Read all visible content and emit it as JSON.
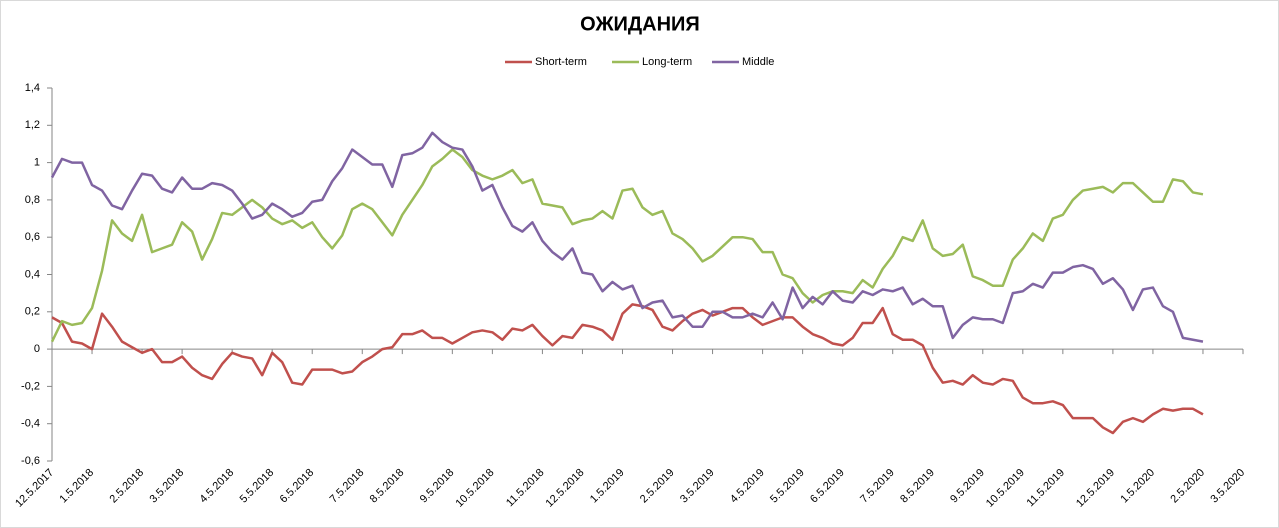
{
  "chart_data": {
    "type": "line",
    "title": "ОЖИДАНИЯ",
    "legend": "top",
    "categories": [
      "12.5.2017",
      null,
      null,
      null,
      "1.5.2018",
      null,
      null,
      null,
      null,
      "2.5.2018",
      null,
      null,
      null,
      "3.5.2018",
      null,
      null,
      null,
      null,
      "4.5.2018",
      null,
      null,
      null,
      "5.5.2018",
      null,
      null,
      null,
      "6.5.2018",
      null,
      null,
      null,
      null,
      "7.5.2018",
      null,
      null,
      null,
      "8.5.2018",
      null,
      null,
      null,
      null,
      "9.5.2018",
      null,
      null,
      null,
      "10.5.2018",
      null,
      null,
      null,
      null,
      "11.5.2018",
      null,
      null,
      null,
      "12.5.2018",
      null,
      null,
      null,
      "1.5.2019",
      null,
      null,
      null,
      null,
      "2.5.2019",
      null,
      null,
      null,
      "3.5.2019",
      null,
      null,
      null,
      null,
      "4.5.2019",
      null,
      null,
      null,
      "5.5.2019",
      null,
      null,
      null,
      "6.5.2019",
      null,
      null,
      null,
      null,
      "7.5.2019",
      null,
      null,
      null,
      "8.5.2019",
      null,
      null,
      null,
      null,
      "9.5.2019",
      null,
      null,
      null,
      "10.5.2019",
      null,
      null,
      null,
      "11.5.2019",
      null,
      null,
      null,
      null,
      "12.5.2019",
      null,
      null,
      null,
      "1.5.2020",
      null,
      null,
      null,
      null,
      "2.5.2020",
      null,
      null,
      null,
      "3.5.2020"
    ],
    "series": [
      {
        "name": "Short-term",
        "color": "#c0504d",
        "values": [
          0.17,
          0.14,
          0.04,
          0.03,
          0,
          0.19,
          0.12,
          0.04,
          0.01,
          -0.02,
          0,
          -0.07,
          -0.07,
          -0.04,
          -0.1,
          -0.14,
          -0.16,
          -0.08,
          -0.02,
          -0.04,
          -0.05,
          -0.14,
          -0.02,
          -0.07,
          -0.18,
          -0.19,
          -0.11,
          -0.11,
          -0.11,
          -0.13,
          -0.12,
          -0.07,
          -0.04,
          0,
          0.01,
          0.08,
          0.08,
          0.1,
          0.06,
          0.06,
          0.03,
          0.06,
          0.09,
          0.1,
          0.09,
          0.05,
          0.11,
          0.1,
          0.13,
          0.07,
          0.02,
          0.07,
          0.06,
          0.13,
          0.12,
          0.1,
          0.05,
          0.19,
          0.24,
          0.23,
          0.21,
          0.12,
          0.1,
          0.15,
          0.19,
          0.21,
          0.18,
          0.2,
          0.22,
          0.22,
          0.17,
          0.13,
          0.15,
          0.17,
          0.17,
          0.12,
          0.08,
          0.06,
          0.03,
          0.02,
          0.06,
          0.14,
          0.14,
          0.22,
          0.08,
          0.05,
          0.05,
          0.02,
          -0.1,
          -0.18,
          -0.17,
          -0.19,
          -0.14,
          -0.18,
          -0.19,
          -0.16,
          -0.17,
          -0.26,
          -0.29,
          -0.29,
          -0.28,
          -0.3,
          -0.37,
          -0.37,
          -0.37,
          -0.42,
          -0.45,
          -0.39,
          -0.37,
          -0.39,
          -0.35,
          -0.32,
          -0.33,
          -0.32,
          -0.32,
          -0.35,
          null,
          null,
          null,
          null
        ]
      },
      {
        "name": "Long-term",
        "color": "#9bbb59",
        "values": [
          0.04,
          0.15,
          0.13,
          0.14,
          0.22,
          0.42,
          0.69,
          0.62,
          0.58,
          0.72,
          0.52,
          0.54,
          0.56,
          0.68,
          0.63,
          0.48,
          0.59,
          0.73,
          0.72,
          0.76,
          0.8,
          0.76,
          0.7,
          0.67,
          0.69,
          0.65,
          0.68,
          0.6,
          0.54,
          0.61,
          0.75,
          0.78,
          0.75,
          0.68,
          0.61,
          0.72,
          0.8,
          0.88,
          0.98,
          1.02,
          1.07,
          1.03,
          0.96,
          0.93,
          0.91,
          0.93,
          0.96,
          0.89,
          0.91,
          0.78,
          0.77,
          0.76,
          0.67,
          0.69,
          0.7,
          0.74,
          0.7,
          0.85,
          0.86,
          0.76,
          0.72,
          0.74,
          0.62,
          0.59,
          0.54,
          0.47,
          0.5,
          0.55,
          0.6,
          0.6,
          0.59,
          0.52,
          0.52,
          0.4,
          0.38,
          0.3,
          0.25,
          0.29,
          0.31,
          0.31,
          0.3,
          0.37,
          0.33,
          0.43,
          0.5,
          0.6,
          0.58,
          0.69,
          0.54,
          0.5,
          0.51,
          0.56,
          0.39,
          0.37,
          0.34,
          0.34,
          0.48,
          0.54,
          0.62,
          0.58,
          0.7,
          0.72,
          0.8,
          0.85,
          0.86,
          0.87,
          0.84,
          0.89,
          0.89,
          0.84,
          0.79,
          0.79,
          0.91,
          0.9,
          0.84,
          0.83,
          null,
          null,
          null,
          null
        ]
      },
      {
        "name": "Middle",
        "color": "#8064a2",
        "values": [
          0.92,
          1.02,
          1.0,
          1.0,
          0.88,
          0.85,
          0.77,
          0.75,
          0.85,
          0.94,
          0.93,
          0.86,
          0.84,
          0.92,
          0.86,
          0.86,
          0.89,
          0.88,
          0.85,
          0.78,
          0.7,
          0.72,
          0.78,
          0.75,
          0.71,
          0.73,
          0.79,
          0.8,
          0.9,
          0.97,
          1.07,
          1.03,
          0.99,
          0.99,
          0.87,
          1.04,
          1.05,
          1.08,
          1.16,
          1.11,
          1.08,
          1.07,
          0.98,
          0.85,
          0.88,
          0.76,
          0.66,
          0.63,
          0.68,
          0.58,
          0.52,
          0.48,
          0.54,
          0.41,
          0.4,
          0.31,
          0.36,
          0.32,
          0.34,
          0.22,
          0.25,
          0.26,
          0.17,
          0.18,
          0.12,
          0.12,
          0.2,
          0.2,
          0.17,
          0.17,
          0.19,
          0.17,
          0.25,
          0.16,
          0.33,
          0.22,
          0.28,
          0.24,
          0.31,
          0.26,
          0.25,
          0.31,
          0.29,
          0.32,
          0.31,
          0.33,
          0.24,
          0.27,
          0.23,
          0.23,
          0.06,
          0.13,
          0.17,
          0.16,
          0.16,
          0.14,
          0.3,
          0.31,
          0.35,
          0.33,
          0.41,
          0.41,
          0.44,
          0.45,
          0.43,
          0.35,
          0.38,
          0.32,
          0.21,
          0.32,
          0.33,
          0.23,
          0.2,
          0.06,
          0.05,
          0.04,
          null,
          null,
          null,
          null
        ]
      }
    ],
    "ylim": [
      -0.6,
      1.4
    ],
    "yticks": [
      {
        "value": -0.6,
        "label": "-0,6"
      },
      {
        "value": -0.4,
        "label": "-0,4"
      },
      {
        "value": -0.2,
        "label": "-0,2"
      },
      0,
      {
        "value": 0.2,
        "label": "0,2"
      },
      {
        "value": 0.4,
        "label": "0,4"
      },
      {
        "value": 0.6,
        "label": "0,6"
      },
      {
        "value": 0.8,
        "label": "0,8"
      },
      1,
      {
        "value": 1.2,
        "label": "1,2"
      },
      {
        "value": 1.4,
        "label": "1,4"
      }
    ],
    "grid": false
  }
}
